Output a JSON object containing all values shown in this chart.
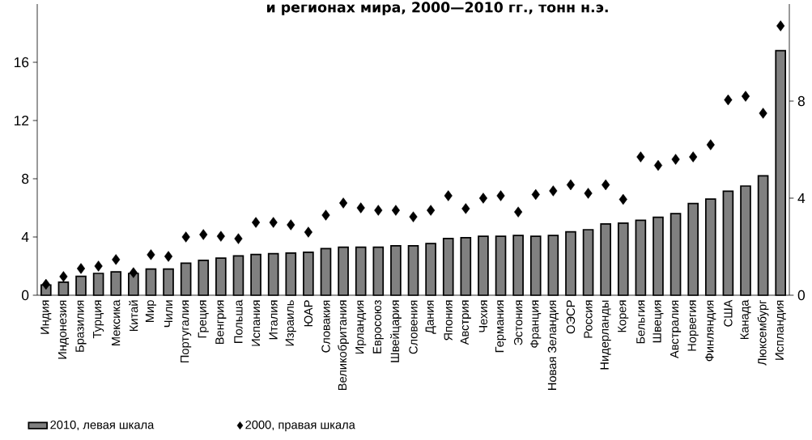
{
  "chart_data": {
    "type": "bar",
    "title": "и регионах мира, 2000—2010 гг., тонн н.э.",
    "categories": [
      "Индия",
      "Индонезия",
      "Бразилия",
      "Турция",
      "Мексика",
      "Китай",
      "Мир",
      "Чили",
      "Португалия",
      "Греция",
      "Венгрия",
      "Польша",
      "Испания",
      "Италия",
      "Израиль",
      "ЮАР",
      "Словакия",
      "Великобритания",
      "Ирландия",
      "Евросоюз",
      "Швейцария",
      "Словения",
      "Дания",
      "Япония",
      "Австрия",
      "Чехия",
      "Германия",
      "Эстония",
      "Франция",
      "Новая Зеландия",
      "ОЭСР",
      "Россия",
      "Нидерланды",
      "Корея",
      "Бельгия",
      "Швеция",
      "Австралия",
      "Норвегия",
      "Финляндия",
      "США",
      "Канада",
      "Люксембург",
      "Испландия"
    ],
    "series": [
      {
        "name": "2010, левая шкала",
        "color": "#808080",
        "values": [
          0.7,
          0.9,
          1.3,
          1.5,
          1.6,
          1.5,
          1.8,
          1.8,
          2.2,
          2.4,
          2.55,
          2.7,
          2.8,
          2.85,
          2.9,
          2.95,
          3.2,
          3.3,
          3.3,
          3.3,
          3.4,
          3.4,
          3.55,
          3.9,
          3.95,
          4.05,
          4.05,
          4.1,
          4.05,
          4.1,
          4.35,
          4.5,
          4.9,
          4.95,
          5.15,
          5.35,
          5.6,
          6.3,
          6.6,
          7.15,
          7.5,
          8.2,
          16.8
        ]
      },
      {
        "name": "2000, правая шкала",
        "type": "scatter",
        "axis": "y2",
        "color": "#000000",
        "marker": "diamond",
        "values": [
          0.45,
          0.77,
          1.1,
          1.2,
          1.47,
          0.93,
          1.67,
          1.6,
          2.4,
          2.5,
          2.43,
          2.33,
          3.0,
          3.0,
          2.9,
          2.6,
          3.3,
          3.8,
          3.6,
          3.5,
          3.5,
          3.23,
          3.5,
          4.1,
          3.57,
          4.0,
          4.1,
          3.43,
          4.15,
          4.3,
          4.55,
          4.2,
          4.55,
          3.95,
          5.7,
          5.35,
          5.6,
          5.7,
          6.2,
          8.05,
          8.2,
          7.5,
          11.1
        ]
      }
    ],
    "ylim": [
      0,
      20
    ],
    "yticks": [
      0,
      4,
      8,
      12,
      16
    ],
    "y2lim": [
      0,
      12
    ],
    "y2ticks": [
      0,
      4,
      8
    ],
    "legend": "bottom"
  }
}
